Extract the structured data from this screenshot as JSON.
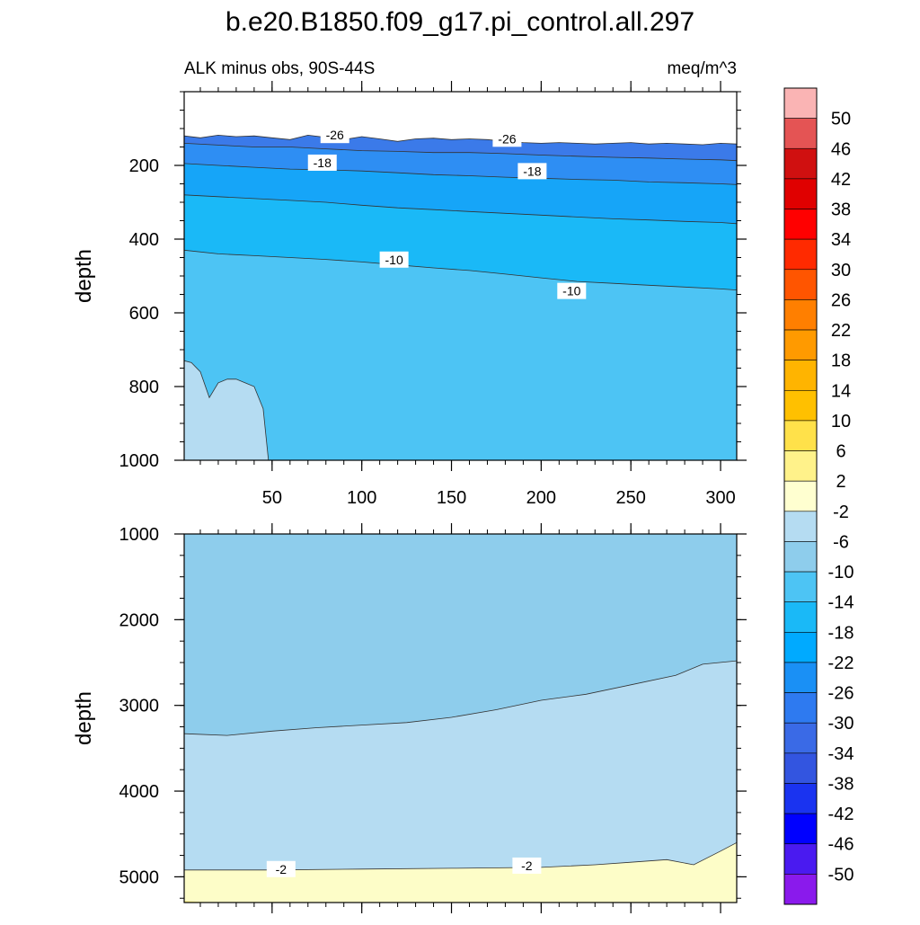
{
  "title": "b.e20.B1850.f09_g17.pi_control.all.297",
  "chart_data": {
    "type": "contour",
    "variable_label": "ALK minus obs, 90S-44S",
    "units": "meq/m^3",
    "ylabel": "depth",
    "x_ticks": [
      50,
      100,
      150,
      200,
      250,
      300
    ],
    "x_range": [
      1,
      309
    ],
    "top_panel": {
      "ylim": [
        1000,
        0
      ],
      "y_ticks": [
        200,
        400,
        600,
        800,
        1000
      ],
      "fills": [
        {
          "level": -30,
          "color": "#3b7ae9",
          "boundary": [
            [
              1,
              120
            ],
            [
              10,
              125
            ],
            [
              20,
              118
            ],
            [
              30,
              122
            ],
            [
              40,
              120
            ],
            [
              50,
              125
            ],
            [
              60,
              130
            ],
            [
              70,
              118
            ],
            [
              80,
              124
            ],
            [
              90,
              130
            ],
            [
              100,
              122
            ],
            [
              110,
              128
            ],
            [
              120,
              135
            ],
            [
              130,
              128
            ],
            [
              140,
              126
            ],
            [
              150,
              130
            ],
            [
              160,
              128
            ],
            [
              170,
              130
            ],
            [
              180,
              135
            ],
            [
              190,
              138
            ],
            [
              200,
              140
            ],
            [
              210,
              138
            ],
            [
              220,
              140
            ],
            [
              230,
              142
            ],
            [
              240,
              140
            ],
            [
              250,
              138
            ],
            [
              260,
              142
            ],
            [
              270,
              140
            ],
            [
              280,
              142
            ],
            [
              290,
              144
            ],
            [
              300,
              140
            ],
            [
              309,
              142
            ]
          ]
        },
        {
          "level": -26,
          "color": "#2e8ef3",
          "boundary": [
            [
              1,
              140
            ],
            [
              20,
              145
            ],
            [
              40,
              150
            ],
            [
              60,
              150
            ],
            [
              80,
              155
            ],
            [
              100,
              160
            ],
            [
              120,
              162
            ],
            [
              140,
              165
            ],
            [
              160,
              165
            ],
            [
              180,
              168
            ],
            [
              200,
              172
            ],
            [
              220,
              175
            ],
            [
              240,
              178
            ],
            [
              260,
              180
            ],
            [
              280,
              183
            ],
            [
              300,
              185
            ],
            [
              309,
              187
            ]
          ]
        },
        {
          "level": -22,
          "color": "#16a5f8",
          "boundary": [
            [
              1,
              195
            ],
            [
              20,
              200
            ],
            [
              40,
              205
            ],
            [
              60,
              210
            ],
            [
              80,
              212
            ],
            [
              100,
              215
            ],
            [
              120,
              220
            ],
            [
              140,
              225
            ],
            [
              160,
              228
            ],
            [
              180,
              232
            ],
            [
              200,
              235
            ],
            [
              220,
              238
            ],
            [
              240,
              240
            ],
            [
              260,
              245
            ],
            [
              280,
              247
            ],
            [
              300,
              250
            ],
            [
              309,
              252
            ]
          ]
        },
        {
          "level": -18,
          "color": "#1ab9f7",
          "boundary": [
            [
              1,
              280
            ],
            [
              20,
              285
            ],
            [
              40,
              290
            ],
            [
              60,
              295
            ],
            [
              80,
              300
            ],
            [
              100,
              308
            ],
            [
              120,
              315
            ],
            [
              140,
              320
            ],
            [
              160,
              325
            ],
            [
              180,
              330
            ],
            [
              200,
              335
            ],
            [
              220,
              340
            ],
            [
              240,
              345
            ],
            [
              260,
              348
            ],
            [
              280,
              352
            ],
            [
              300,
              355
            ],
            [
              309,
              358
            ]
          ]
        },
        {
          "level": -14,
          "color": "#4dc4f4",
          "boundary": [
            [
              1,
              430
            ],
            [
              20,
              440
            ],
            [
              40,
              445
            ],
            [
              60,
              450
            ],
            [
              80,
              455
            ],
            [
              100,
              462
            ],
            [
              120,
              470
            ],
            [
              140,
              478
            ],
            [
              160,
              485
            ],
            [
              180,
              495
            ],
            [
              200,
              505
            ],
            [
              220,
              515
            ],
            [
              240,
              520
            ],
            [
              260,
              525
            ],
            [
              280,
              530
            ],
            [
              300,
              535
            ],
            [
              309,
              538
            ]
          ]
        },
        {
          "level": -10,
          "color": "#8ecdec",
          "boundary": [
            [
              1,
              1000
            ],
            [
              48,
              1000
            ]
          ]
        },
        {
          "level": -6,
          "color": "#b5dcf2",
          "boundary": [
            [
              1,
              730
            ],
            [
              5,
              735
            ],
            [
              10,
              760
            ],
            [
              15,
              830
            ],
            [
              20,
              790
            ],
            [
              25,
              780
            ],
            [
              30,
              780
            ],
            [
              35,
              790
            ],
            [
              40,
              800
            ],
            [
              45,
              860
            ],
            [
              48,
              1000
            ]
          ]
        }
      ],
      "contour_labels": [
        {
          "text": "-26",
          "x": 85,
          "y": 120
        },
        {
          "text": "-26",
          "x": 181,
          "y": 130
        },
        {
          "text": "-18",
          "x": 78,
          "y": 195
        },
        {
          "text": "-18",
          "x": 195,
          "y": 218
        },
        {
          "text": "-10",
          "x": 118,
          "y": 458
        },
        {
          "text": "-10",
          "x": 217,
          "y": 543
        }
      ]
    },
    "bottom_panel": {
      "ylim": [
        5300,
        1000
      ],
      "y_ticks": [
        1000,
        2000,
        3000,
        4000,
        5000
      ],
      "fills": [
        {
          "level": -10,
          "color": "#8ecdec"
        },
        {
          "level": -6,
          "color": "#b5dcf2",
          "boundary": [
            [
              1,
              3330
            ],
            [
              25,
              3350
            ],
            [
              50,
              3300
            ],
            [
              75,
              3260
            ],
            [
              100,
              3230
            ],
            [
              125,
              3200
            ],
            [
              150,
              3140
            ],
            [
              175,
              3050
            ],
            [
              200,
              2940
            ],
            [
              225,
              2870
            ],
            [
              250,
              2760
            ],
            [
              275,
              2650
            ],
            [
              290,
              2520
            ],
            [
              309,
              2480
            ]
          ]
        },
        {
          "level": -2,
          "color": "#fdfdc8",
          "boundary": [
            [
              1,
              4920
            ],
            [
              50,
              4920
            ],
            [
              100,
              4910
            ],
            [
              150,
              4900
            ],
            [
              200,
              4890
            ],
            [
              230,
              4860
            ],
            [
              250,
              4830
            ],
            [
              270,
              4800
            ],
            [
              285,
              4860
            ],
            [
              300,
              4700
            ],
            [
              309,
              4600
            ]
          ]
        },
        {
          "level": 2,
          "color": "#fef48a",
          "boundary": [
            [
              1,
              5280
            ],
            [
              30,
              5320
            ]
          ]
        }
      ],
      "contour_labels": [
        {
          "text": "-2",
          "x": 55,
          "y": 4920
        },
        {
          "text": "-2",
          "x": 192,
          "y": 4880
        }
      ]
    },
    "colorbar": {
      "levels": [
        "50",
        "46",
        "42",
        "38",
        "34",
        "30",
        "26",
        "22",
        "18",
        "14",
        "10",
        "6",
        "2",
        "-2",
        "-6",
        "-10",
        "-14",
        "-18",
        "-22",
        "-26",
        "-30",
        "-34",
        "-38",
        "-42",
        "-46",
        "-50"
      ],
      "colors": [
        "#fab4b4",
        "#e45454",
        "#d01010",
        "#e00000",
        "#ff0000",
        "#ff2a00",
        "#ff5500",
        "#ff7f00",
        "#ff9a00",
        "#ffb400",
        "#ffc000",
        "#ffe14a",
        "#fff28a",
        "#ffffd0",
        "#b5dcf2",
        "#8ecdec",
        "#4dc4f4",
        "#1ab9f7",
        "#00aaff",
        "#1a90f5",
        "#2e7af0",
        "#3a6ae6",
        "#3355e0",
        "#1a33f0",
        "#0000ff",
        "#4a1af0",
        "#8a1aec"
      ]
    }
  }
}
